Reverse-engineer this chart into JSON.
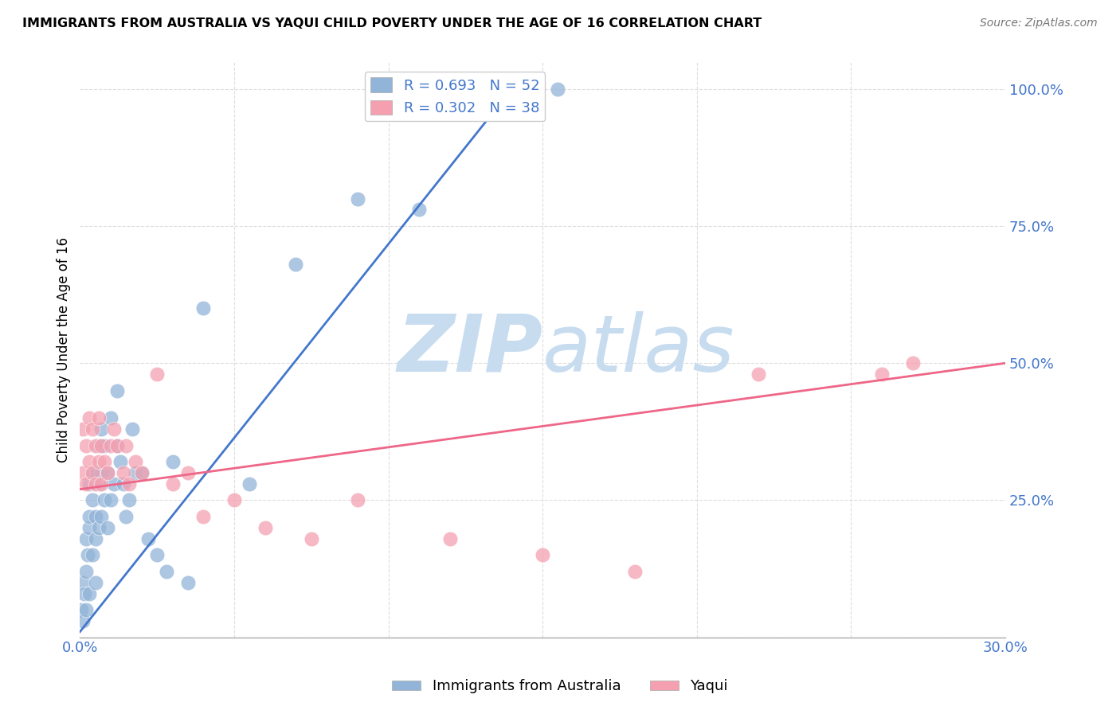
{
  "title": "IMMIGRANTS FROM AUSTRALIA VS YAQUI CHILD POVERTY UNDER THE AGE OF 16 CORRELATION CHART",
  "source": "Source: ZipAtlas.com",
  "ylabel": "Child Poverty Under the Age of 16",
  "ytick_vals": [
    0.0,
    0.25,
    0.5,
    0.75,
    1.0
  ],
  "ytick_labels": [
    "",
    "25.0%",
    "50.0%",
    "75.0%",
    "100.0%"
  ],
  "xtick_vals": [
    0.0,
    0.05,
    0.1,
    0.15,
    0.2,
    0.25,
    0.3
  ],
  "xtick_labels": [
    "0.0%",
    "",
    "",
    "",
    "",
    "",
    "30.0%"
  ],
  "xlim": [
    0.0,
    0.3
  ],
  "ylim": [
    0.0,
    1.05
  ],
  "legend_r1": "R = 0.693   N = 52",
  "legend_r2": "R = 0.302   N = 38",
  "blue_color": "#92B4D8",
  "pink_color": "#F4A0B0",
  "trend_blue": "#4477CC",
  "trend_pink": "#EE6688",
  "watermark_zip": "ZIP",
  "watermark_atlas": "atlas",
  "blue_scatter_x": [
    0.0005,
    0.001,
    0.001,
    0.0015,
    0.002,
    0.002,
    0.002,
    0.0025,
    0.003,
    0.003,
    0.003,
    0.003,
    0.004,
    0.004,
    0.004,
    0.005,
    0.005,
    0.005,
    0.005,
    0.006,
    0.006,
    0.006,
    0.007,
    0.007,
    0.007,
    0.008,
    0.008,
    0.009,
    0.009,
    0.01,
    0.01,
    0.011,
    0.012,
    0.012,
    0.013,
    0.014,
    0.015,
    0.016,
    0.017,
    0.018,
    0.02,
    0.022,
    0.025,
    0.028,
    0.03,
    0.035,
    0.04,
    0.055,
    0.07,
    0.09,
    0.11,
    0.155
  ],
  "blue_scatter_y": [
    0.05,
    0.03,
    0.1,
    0.08,
    0.05,
    0.12,
    0.18,
    0.15,
    0.08,
    0.2,
    0.22,
    0.28,
    0.15,
    0.25,
    0.3,
    0.1,
    0.18,
    0.22,
    0.3,
    0.2,
    0.28,
    0.35,
    0.22,
    0.3,
    0.38,
    0.25,
    0.35,
    0.2,
    0.3,
    0.25,
    0.4,
    0.28,
    0.35,
    0.45,
    0.32,
    0.28,
    0.22,
    0.25,
    0.38,
    0.3,
    0.3,
    0.18,
    0.15,
    0.12,
    0.32,
    0.1,
    0.6,
    0.28,
    0.68,
    0.8,
    0.78,
    1.0
  ],
  "pink_scatter_x": [
    0.001,
    0.001,
    0.002,
    0.002,
    0.003,
    0.003,
    0.004,
    0.004,
    0.005,
    0.005,
    0.006,
    0.006,
    0.007,
    0.007,
    0.008,
    0.009,
    0.01,
    0.011,
    0.012,
    0.014,
    0.015,
    0.016,
    0.018,
    0.02,
    0.025,
    0.03,
    0.035,
    0.04,
    0.05,
    0.06,
    0.075,
    0.09,
    0.12,
    0.15,
    0.18,
    0.22,
    0.26,
    0.27
  ],
  "pink_scatter_y": [
    0.3,
    0.38,
    0.28,
    0.35,
    0.32,
    0.4,
    0.3,
    0.38,
    0.28,
    0.35,
    0.32,
    0.4,
    0.28,
    0.35,
    0.32,
    0.3,
    0.35,
    0.38,
    0.35,
    0.3,
    0.35,
    0.28,
    0.32,
    0.3,
    0.48,
    0.28,
    0.3,
    0.22,
    0.25,
    0.2,
    0.18,
    0.25,
    0.18,
    0.15,
    0.12,
    0.48,
    0.48,
    0.5
  ],
  "blue_trend_x": [
    0.0,
    0.14
  ],
  "blue_trend_y": [
    0.01,
    1.0
  ],
  "pink_trend_x": [
    0.0,
    0.3
  ],
  "pink_trend_y": [
    0.27,
    0.5
  ]
}
